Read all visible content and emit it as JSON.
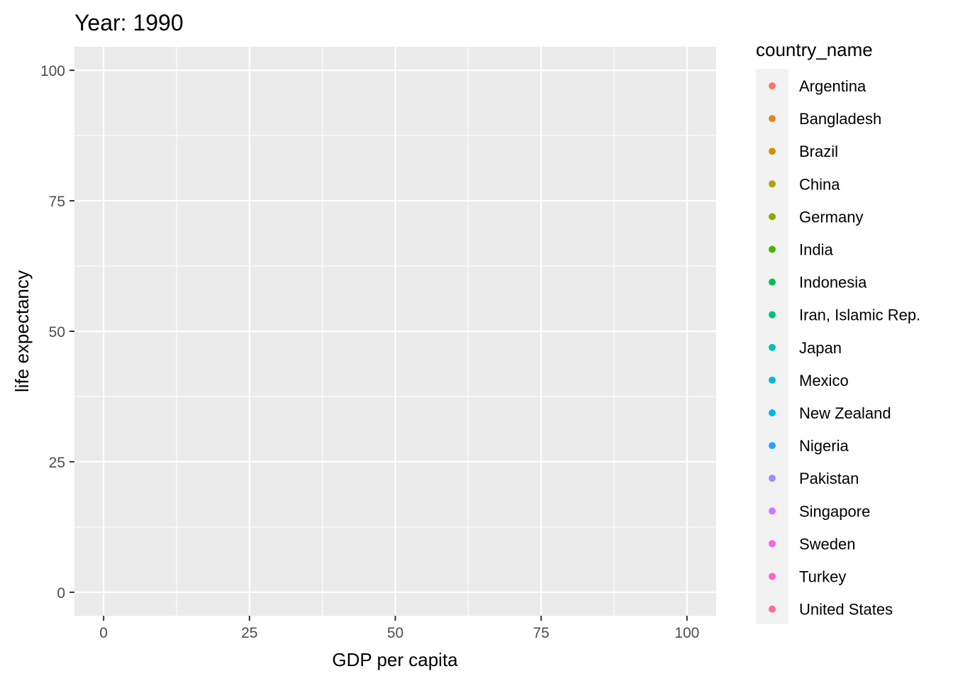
{
  "chart_data": {
    "type": "scatter",
    "title": "Year: 1990",
    "xlabel": "GDP per capita",
    "ylabel": "life expectancy",
    "xlim": [
      -5,
      105
    ],
    "ylim": [
      -4.5,
      104.5
    ],
    "x_ticks": [
      0,
      25,
      50,
      75,
      100
    ],
    "y_ticks": [
      0,
      25,
      50,
      75,
      100
    ],
    "x_minor": [
      12.5,
      37.5,
      62.5,
      87.5
    ],
    "y_minor": [
      12.5,
      37.5,
      62.5,
      87.5
    ],
    "grid": true,
    "legend_position": "right",
    "legend": {
      "title": "country_name",
      "entries": [
        {
          "name": "Argentina",
          "color": "#F8766D"
        },
        {
          "name": "Bangladesh",
          "color": "#E7851E"
        },
        {
          "name": "Brazil",
          "color": "#D09400"
        },
        {
          "name": "China",
          "color": "#B2A100"
        },
        {
          "name": "Germany",
          "color": "#89AC00"
        },
        {
          "name": "India",
          "color": "#45B500"
        },
        {
          "name": "Indonesia",
          "color": "#00BC51"
        },
        {
          "name": "Iran, Islamic Rep.",
          "color": "#00C087"
        },
        {
          "name": "Japan",
          "color": "#00C0B2"
        },
        {
          "name": "Mexico",
          "color": "#00BCD6"
        },
        {
          "name": "New Zealand",
          "color": "#00B3F2"
        },
        {
          "name": "Nigeria",
          "color": "#29A3FF"
        },
        {
          "name": "Pakistan",
          "color": "#9C8DFF"
        },
        {
          "name": "Singapore",
          "color": "#D277FF"
        },
        {
          "name": "Sweden",
          "color": "#F166E8"
        },
        {
          "name": "Turkey",
          "color": "#FF61C7"
        },
        {
          "name": "United States",
          "color": "#FF689E"
        }
      ]
    },
    "series": []
  }
}
